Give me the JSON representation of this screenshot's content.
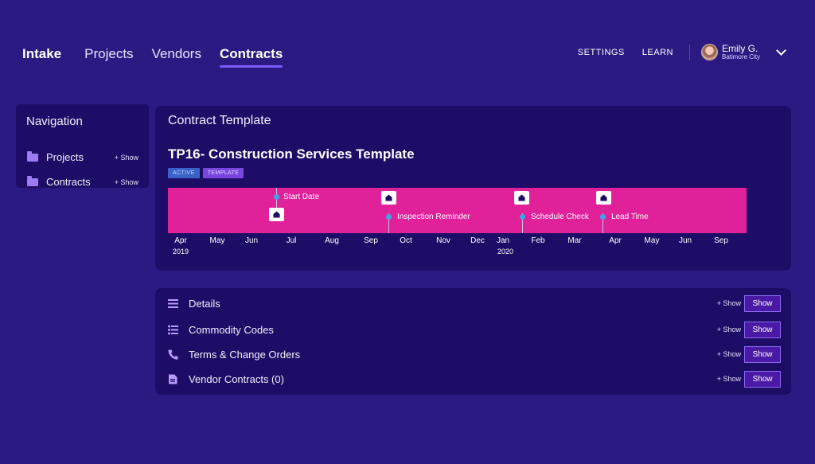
{
  "nav": {
    "brand": "Intake",
    "links": [
      "Projects",
      "Vendors",
      "Contracts"
    ],
    "active": "Contracts",
    "settings": "SETTINGS",
    "learn": "LEARN",
    "user_name": "Emily G.",
    "user_city": "Batimore City",
    "user_menu_icon": "chevron-down-icon"
  },
  "sidebar": {
    "title": "Navigation",
    "items": [
      {
        "label": "Projects",
        "show": "+ Show",
        "icon": "folder-icon"
      },
      {
        "label": "Contracts",
        "show": "+ Show",
        "icon": "folder-icon"
      }
    ]
  },
  "template": {
    "card_title": "Contract Template",
    "title": "TP16- Construction Services Template",
    "badges": [
      "ACTIVE",
      "TEMPLATE"
    ],
    "timeline_color": "#e0219a",
    "markers": [
      {
        "label": "Start Date"
      },
      {
        "label": "Inspection Reminder"
      },
      {
        "label": "Schedule Check"
      },
      {
        "label": "Lead Time"
      }
    ],
    "months": [
      "Apr",
      "May",
      "Jun",
      "Jul",
      "Aug",
      "Sep",
      "Oct",
      "Nov",
      "Dec",
      "Jan",
      "Feb",
      "Mar",
      "Apr",
      "May",
      "Jun",
      "Sep"
    ],
    "years": [
      "2019",
      "2020"
    ]
  },
  "details": {
    "rows": [
      {
        "label": "Details",
        "plus": "+ Show",
        "button": "Show",
        "icon": "hamburger-icon"
      },
      {
        "label": "Commodity Codes",
        "plus": "+ Show",
        "button": "Show",
        "icon": "list-icon"
      },
      {
        "label": "Terms & Change Orders",
        "plus": "+ Show",
        "button": "Show",
        "icon": "phone-icon"
      },
      {
        "label": "Vendor Contracts (0)",
        "plus": "+ Show",
        "button": "Show",
        "icon": "document-icon"
      }
    ]
  },
  "colors": {
    "background": "#2b1a82",
    "card": "#1e0d66",
    "accent": "#7c5cff",
    "timeline": "#e0219a",
    "marker": "#3fa6e6"
  }
}
